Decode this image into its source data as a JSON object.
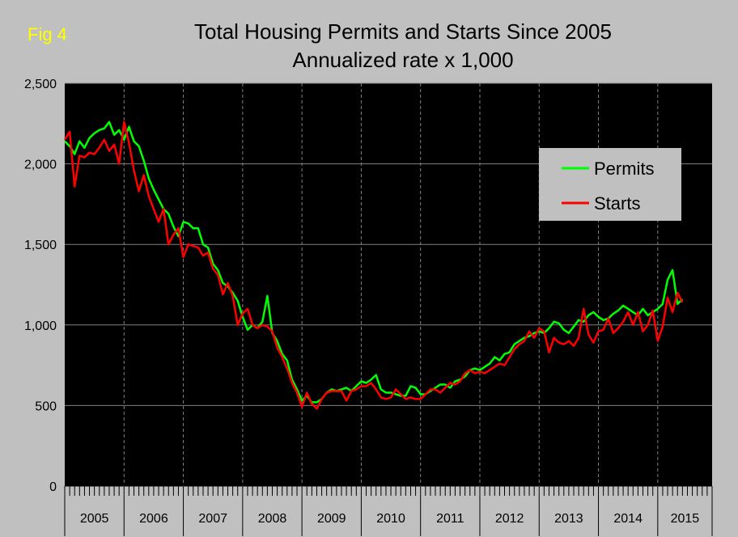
{
  "figure": {
    "label": "Fig 4",
    "label_color": "#ffff00",
    "title": "Total Housing Permits and Starts Since 2005",
    "subtitle": "Annualized rate x 1,000"
  },
  "colors": {
    "background": "#c0c0c0",
    "plot_background": "#000000",
    "grid": "#808080",
    "legend_background": "#c0c0c0"
  },
  "chart_data": {
    "type": "line",
    "title": "Total Housing Permits and Starts Since 2005",
    "subtitle": "Annualized rate x 1,000",
    "xlabel": "",
    "ylabel": "",
    "ylim": [
      0,
      2500
    ],
    "yticks": [
      0,
      500,
      1000,
      1500,
      2000,
      2500
    ],
    "ytick_labels": [
      "0",
      "500",
      "1,000",
      "1,500",
      "2,000",
      "2,500"
    ],
    "year_labels": [
      "2005",
      "2006",
      "2007",
      "2008",
      "2009",
      "2010",
      "2011",
      "2012",
      "2013",
      "2014",
      "2015"
    ],
    "grid": true,
    "legend_position": "top-right",
    "x_start": "2005-01",
    "series": [
      {
        "name": "Permits",
        "color": "#00ff00",
        "values": [
          2140,
          2110,
          2060,
          2140,
          2100,
          2160,
          2190,
          2210,
          2220,
          2260,
          2180,
          2210,
          2150,
          2230,
          2140,
          2110,
          2020,
          1910,
          1840,
          1780,
          1720,
          1690,
          1610,
          1550,
          1640,
          1630,
          1600,
          1600,
          1500,
          1480,
          1380,
          1340,
          1260,
          1240,
          1200,
          1150,
          1050,
          970,
          1000,
          980,
          1020,
          1180,
          950,
          900,
          820,
          780,
          660,
          600,
          530,
          560,
          520,
          520,
          540,
          580,
          600,
          590,
          600,
          610,
          590,
          620,
          650,
          640,
          660,
          690,
          600,
          580,
          580,
          570,
          560,
          560,
          620,
          610,
          570,
          570,
          590,
          610,
          630,
          630,
          610,
          650,
          660,
          680,
          720,
          730,
          720,
          740,
          760,
          800,
          780,
          820,
          830,
          880,
          900,
          920,
          930,
          950,
          960,
          950,
          980,
          1020,
          1010,
          970,
          950,
          990,
          1030,
          1020,
          1060,
          1080,
          1050,
          1030,
          1040,
          1070,
          1090,
          1120,
          1100,
          1080,
          1060,
          1100,
          1060,
          1080,
          1100,
          1130,
          1280,
          1340,
          1130,
          1160
        ]
      },
      {
        "name": "Starts",
        "color": "#ff0000",
        "values": [
          2150,
          2200,
          1860,
          2050,
          2040,
          2070,
          2060,
          2100,
          2150,
          2080,
          2120,
          2000,
          2260,
          2130,
          1960,
          1830,
          1930,
          1800,
          1720,
          1640,
          1720,
          1500,
          1560,
          1600,
          1420,
          1500,
          1490,
          1480,
          1430,
          1450,
          1350,
          1310,
          1190,
          1260,
          1180,
          1000,
          1070,
          1100,
          1000,
          980,
          1000,
          990,
          960,
          860,
          800,
          730,
          640,
          580,
          490,
          580,
          510,
          480,
          540,
          580,
          590,
          590,
          590,
          530,
          590,
          600,
          620,
          620,
          640,
          600,
          550,
          540,
          550,
          600,
          570,
          540,
          550,
          540,
          540,
          570,
          600,
          600,
          580,
          610,
          640,
          630,
          650,
          700,
          720,
          700,
          710,
          700,
          720,
          740,
          760,
          750,
          800,
          850,
          880,
          900,
          960,
          920,
          980,
          960,
          830,
          920,
          890,
          880,
          900,
          870,
          920,
          1100,
          940,
          890,
          960,
          970,
          1040,
          950,
          980,
          1020,
          1080,
          1000,
          1080,
          960,
          1000,
          1090,
          900,
          990,
          1170,
          1080,
          1200,
          1140
        ]
      }
    ]
  }
}
